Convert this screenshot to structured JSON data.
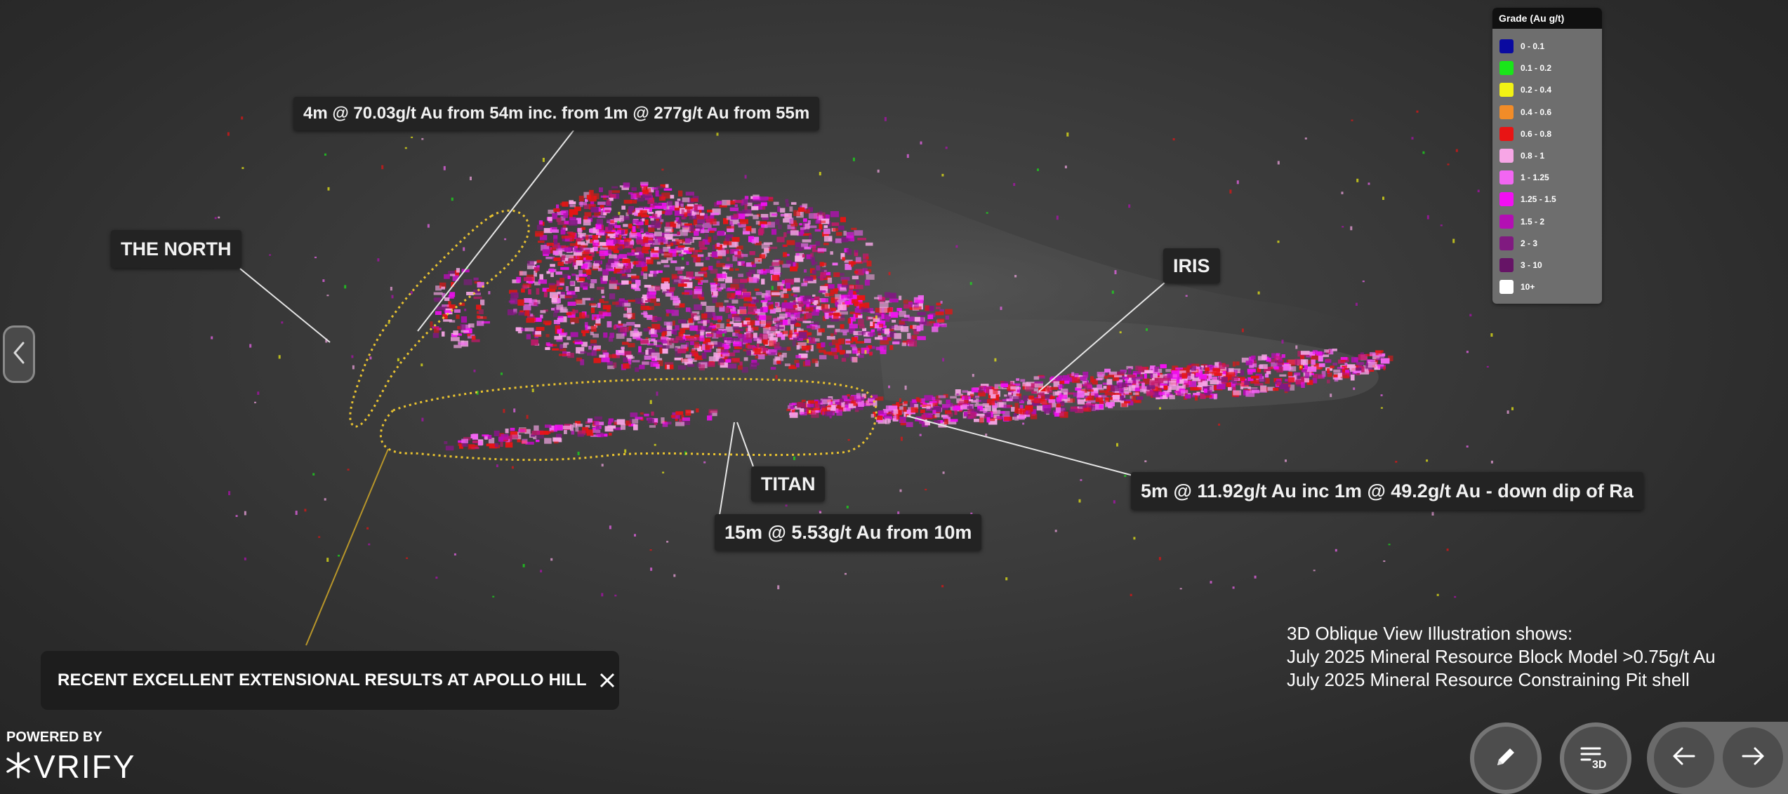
{
  "callouts": {
    "top": "4m @ 70.03g/t Au from 54m inc. from 1m @ 277g/t Au from 55m",
    "north": "THE NORTH",
    "iris": "IRIS",
    "titan": "TITAN",
    "titan_result": "15m @ 5.53g/t Au from 10m",
    "iris_result": "5m @ 11.92g/t Au inc 1m @ 49.2g/t Au - down dip of Ra"
  },
  "legend": {
    "title": "Grade (Au g/t)",
    "items": [
      {
        "label": "0 - 0.1",
        "color": "#0a0aa0"
      },
      {
        "label": "0.1 - 0.2",
        "color": "#19e619"
      },
      {
        "label": "0.2 - 0.4",
        "color": "#f2f214"
      },
      {
        "label": "0.4 - 0.6",
        "color": "#f28c28"
      },
      {
        "label": "0.6 - 0.8",
        "color": "#e81414"
      },
      {
        "label": "0.8 - 1",
        "color": "#f7a6e6"
      },
      {
        "label": "1 - 1.25",
        "color": "#f266f2"
      },
      {
        "label": "1.25 - 1.5",
        "color": "#f20ff2"
      },
      {
        "label": "1.5 - 2",
        "color": "#b30fb3"
      },
      {
        "label": "2 - 3",
        "color": "#801a80"
      },
      {
        "label": "3 - 10",
        "color": "#661466"
      },
      {
        "label": "10+",
        "color": "#ffffff"
      }
    ]
  },
  "chapter": {
    "title": "RECENT EXCELLENT EXTENSIONAL RESULTS AT APOLLO HILL"
  },
  "caption": {
    "line1": "3D Oblique View Illustration shows:",
    "line2": "July 2025 Mineral Resource Block Model >0.75g/t Au",
    "line3": "July 2025 Mineral Resource Constraining Pit shell"
  },
  "branding": {
    "powered_by": "POWERED BY",
    "logo_text": "VRIFY"
  },
  "icons": {
    "side": "chevron-left-icon",
    "edit": "pencil-icon",
    "view": "layers-3d-icon",
    "prev": "arrow-left-icon",
    "next": "arrow-right-icon",
    "close": "close-icon"
  },
  "colors": {
    "zone_outline": "#e8c230",
    "leader_line": "#e6e6e6",
    "panel": "#1d1d1d"
  }
}
